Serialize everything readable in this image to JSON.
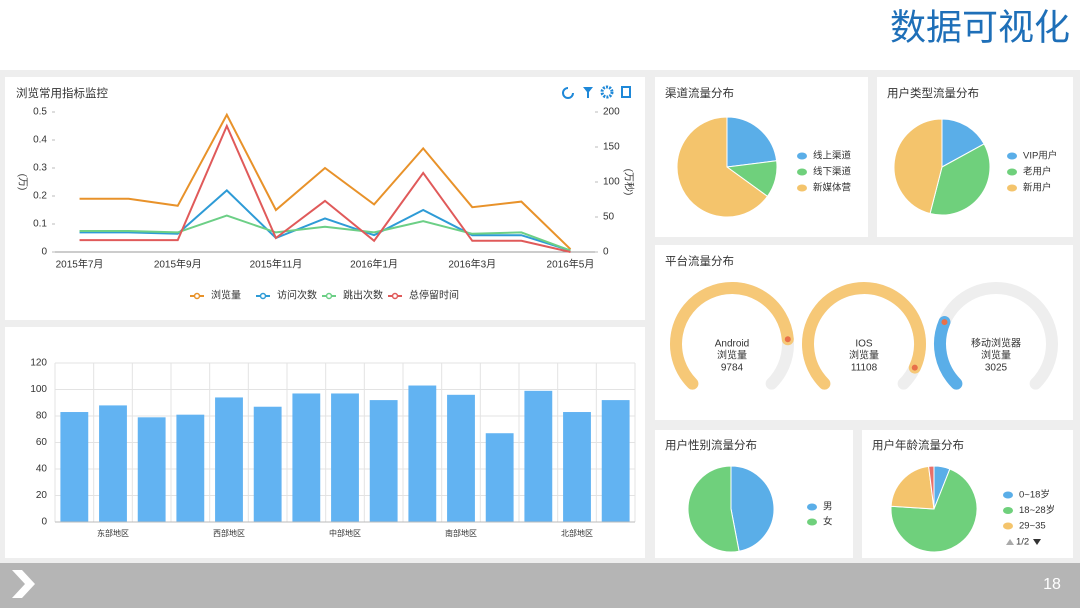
{
  "header": {
    "title": "数据可视化"
  },
  "page_number": "18",
  "chart_data": [
    {
      "type": "line",
      "title": "浏览常用指标监控",
      "categories": [
        "2015年7月",
        null,
        "2015年9月",
        null,
        "2015年11月",
        null,
        "2016年1月",
        null,
        "2016年3月",
        null,
        "2016年5月"
      ],
      "ylabel": "(万)",
      "y2label": "(万秒)",
      "ylim": [
        0,
        0.5
      ],
      "yticks": [
        0,
        0.1,
        0.2,
        0.3,
        0.4,
        0.5
      ],
      "y2lim": [
        0,
        200
      ],
      "y2ticks": [
        0,
        50,
        100,
        150,
        200
      ],
      "legend": "bottom",
      "series": [
        {
          "name": "浏览量",
          "color": "#e8922a",
          "values": [
            0.19,
            0.19,
            0.165,
            0.49,
            0.15,
            0.3,
            0.17,
            0.37,
            0.16,
            0.18,
            0.01
          ]
        },
        {
          "name": "访问次数",
          "color": "#2e9bd6",
          "values": [
            0.07,
            0.07,
            0.065,
            0.22,
            0.05,
            0.12,
            0.06,
            0.15,
            0.06,
            0.06,
            0.005
          ]
        },
        {
          "name": "跳出次数",
          "color": "#6ccf86",
          "values": [
            0.075,
            0.075,
            0.07,
            0.13,
            0.07,
            0.09,
            0.07,
            0.11,
            0.065,
            0.07,
            0.005
          ]
        },
        {
          "name": "总停留时间",
          "color": "#e05a5a",
          "axis": "y2",
          "values": [
            17,
            17,
            17,
            180,
            20,
            73,
            16,
            113,
            16,
            16,
            0
          ]
        }
      ]
    },
    {
      "type": "bar",
      "color": "#62b3f2",
      "categories": [
        null,
        "东部地区",
        null,
        null,
        "西部地区",
        null,
        null,
        "中部地区",
        null,
        null,
        "南部地区",
        null,
        null,
        "北部地区",
        null
      ],
      "values": [
        83,
        88,
        79,
        81,
        94,
        87,
        97,
        97,
        92,
        103,
        96,
        67,
        99,
        83,
        92
      ],
      "ylim": [
        0,
        120
      ],
      "yticks": [
        0,
        20,
        40,
        60,
        80,
        100,
        120
      ],
      "grid": true
    },
    {
      "type": "pie",
      "title": "渠道流量分布",
      "categories": [
        "线上渠道",
        "线下渠道",
        "新媒体营"
      ],
      "values": [
        23,
        12,
        65
      ],
      "colors": [
        "#5aaee8",
        "#6fd07c",
        "#f4c46c"
      ]
    },
    {
      "type": "pie",
      "title": "用户类型流量分布",
      "categories": [
        "VIP用户",
        "老用户",
        "新用户"
      ],
      "values": [
        17,
        37,
        46
      ],
      "colors": [
        "#5aaee8",
        "#6fd07c",
        "#f4c46c"
      ]
    },
    {
      "type": "gauge",
      "title": "平台流量分布",
      "range": [
        0,
        12000
      ],
      "items": [
        {
          "name": "Android",
          "metric": "浏览量",
          "value": 9784,
          "color": "#f6c877"
        },
        {
          "name": "IOS",
          "metric": "浏览量",
          "value": 11108,
          "color": "#f6c877"
        },
        {
          "name": "移动浏览器",
          "metric": "浏览量",
          "value": 3025,
          "color": "#5aaee8"
        }
      ]
    },
    {
      "type": "pie",
      "title": "用户性别流量分布",
      "categories": [
        "男",
        "女"
      ],
      "values": [
        47,
        53
      ],
      "colors": [
        "#5aaee8",
        "#6fd07c"
      ]
    },
    {
      "type": "pie",
      "title": "用户年龄流量分布",
      "categories": [
        "0~18岁",
        "18~28岁",
        "29~35",
        null
      ],
      "values": [
        6,
        70,
        22,
        2
      ],
      "colors": [
        "#5aaee8",
        "#6fd07c",
        "#f4c46c",
        "#e8706a"
      ],
      "legend_page": "1/2"
    }
  ]
}
